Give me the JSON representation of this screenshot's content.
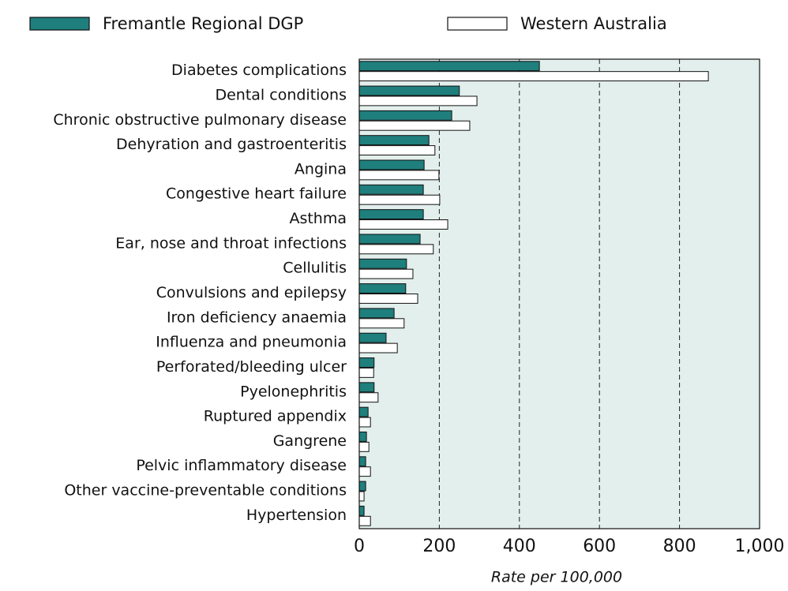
{
  "chart_data": {
    "type": "hbar",
    "xlabel": "Rate per 100,000",
    "categories": [
      "Diabetes complications",
      "Dental conditions",
      "Chronic obstructive pulmonary disease",
      "Dehyration and gastroenteritis",
      "Angina",
      "Congestive heart failure",
      "Asthma",
      "Ear, nose and throat infections",
      "Cellulitis",
      "Convulsions and epilepsy",
      "Iron deficiency anaemia",
      "Influenza and pneumonia",
      "Perforated/bleeding ulcer",
      "Pyelonephritis",
      "Ruptured appendix",
      "Gangrene",
      "Pelvic inflammatory disease",
      "Other vaccine-preventable conditions",
      "Hypertension"
    ],
    "series": [
      {
        "name": "Fremantle Regional DGP",
        "color": "#1f7f7d",
        "values": [
          450,
          250,
          231,
          174,
          162,
          160,
          160,
          152,
          118,
          116,
          87,
          67,
          37,
          37,
          22,
          18,
          16,
          16,
          12
        ]
      },
      {
        "name": "Western Australia",
        "color": "#ffffff",
        "values": [
          872,
          294,
          276,
          189,
          199,
          201,
          221,
          185,
          134,
          146,
          112,
          95,
          36,
          47,
          28,
          24,
          28,
          12,
          28
        ]
      }
    ],
    "xlim": [
      0,
      1000
    ],
    "xticks": [
      0,
      200,
      400,
      600,
      800,
      {
        "value": 1000,
        "label": "1,000"
      }
    ],
    "grid": true,
    "plot_background": "#e2efec"
  }
}
